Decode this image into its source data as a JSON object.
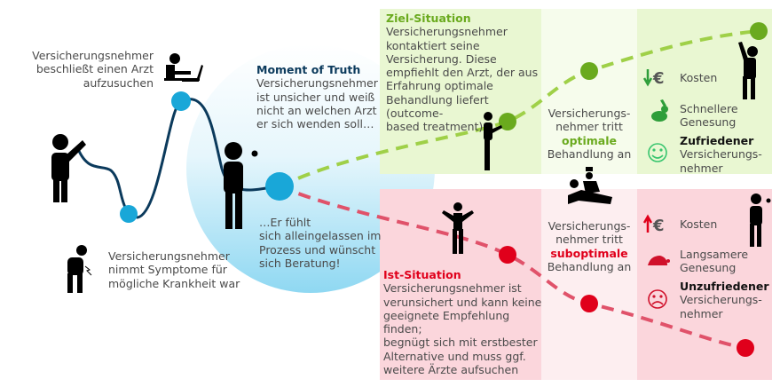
{
  "colors": {
    "navy": "#0b3a5c",
    "blue_dot": "#19a7d8",
    "green": "#6aaa1e",
    "green_line": "#9fd048",
    "red": "#e0001b",
    "red_line": "#e0526a",
    "green_bg": "#e9f7d2",
    "red_bg": "#fbd6dc"
  },
  "journey": {
    "decide": [
      "Versicherungsnehmer",
      "beschließt einen Arzt",
      "aufzusuchen"
    ],
    "symptoms": [
      "Versicherungsnehmer",
      "nimmt Symptome für",
      "mögliche Krankheit war"
    ],
    "moment_title": "Moment of Truth",
    "moment": [
      "Versicherungsnehmer",
      "ist unsicher und weiß",
      "nicht an welchen Arzt",
      "er sich wenden soll…"
    ],
    "alone": [
      "…Er fühlt",
      "sich alleingelassen im",
      "Prozess und wünscht",
      "sich Beratung!"
    ]
  },
  "ziel": {
    "title": "Ziel-Situation",
    "lines": [
      "Versicherungsnehmer",
      "kontaktiert seine",
      "Versicherung. Diese",
      "empfiehlt den Arzt, der aus",
      "Erfahrung optimale",
      "Behandlung liefert",
      "(outcome-",
      "based treatment)"
    ],
    "mid": [
      "Versicherungs-",
      "nehmer tritt"
    ],
    "mid_key": "optimale",
    "mid_end": "Behandlung an",
    "kosten": "Kosten",
    "genesung": [
      "Schnellere",
      "Genesung"
    ],
    "zufrieden_b": "Zufriedener",
    "zufrieden": [
      "Versicherungs-",
      "nehmer"
    ],
    "icons": [
      "euro-down-icon",
      "rabbit-icon",
      "smiley-happy-icon"
    ]
  },
  "ist": {
    "title": "Ist-Situation",
    "lines": [
      "Versicherungsnehmer ist",
      "verunsichert und kann keine",
      "geeignete Empfehlung",
      "finden;",
      "begnügt sich mit erstbester",
      "Alternative und muss ggf.",
      "weitere Ärzte aufsuchen"
    ],
    "mid": [
      "Versicherungs-",
      "nehmer tritt"
    ],
    "mid_key": "suboptimale",
    "mid_end": "Behandlung an",
    "kosten": "Kosten",
    "genesung": [
      "Langsamere",
      "Genesung"
    ],
    "zufrieden_b": "Unzufriedener",
    "zufrieden": [
      "Versicherungs-",
      "nehmer"
    ],
    "icons": [
      "euro-up-icon",
      "snail-icon",
      "smiley-sad-icon"
    ]
  }
}
